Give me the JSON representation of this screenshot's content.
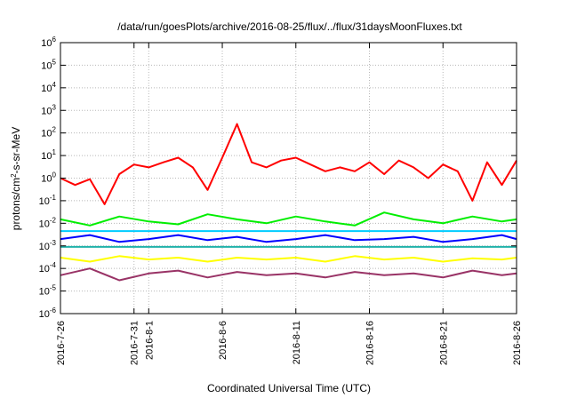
{
  "chart_data": {
    "type": "line",
    "title": "/data/run/goesPlots/archive/2016-08-25/flux/../flux/31daysMoonFluxes.txt",
    "xlabel": "Coordinated Universal Time (UTC)",
    "ylabel_parts": [
      "protons/cm",
      "2",
      "-s-sr-MeV"
    ],
    "y_scale": "log",
    "ylim": [
      1e-06,
      1000000.0
    ],
    "y_ticks": [
      {
        "base": "10",
        "exp": "-6",
        "value": 1e-06
      },
      {
        "base": "10",
        "exp": "-5",
        "value": 1e-05
      },
      {
        "base": "10",
        "exp": "-4",
        "value": 0.0001
      },
      {
        "base": "10",
        "exp": "-3",
        "value": 0.001
      },
      {
        "base": "10",
        "exp": "-2",
        "value": 0.01
      },
      {
        "base": "10",
        "exp": "-1",
        "value": 0.1
      },
      {
        "base": "10",
        "exp": "0",
        "value": 1
      },
      {
        "base": "10",
        "exp": "1",
        "value": 10
      },
      {
        "base": "10",
        "exp": "2",
        "value": 100
      },
      {
        "base": "10",
        "exp": "3",
        "value": 1000
      },
      {
        "base": "10",
        "exp": "4",
        "value": 10000
      },
      {
        "base": "10",
        "exp": "5",
        "value": 100000
      },
      {
        "base": "10",
        "exp": "6",
        "value": 1000000
      }
    ],
    "x_range": [
      "2016-07-26",
      "2016-08-26"
    ],
    "x_ticks": [
      "2016-7-26",
      "2016-7-31",
      "2016-8-1",
      "2016-8-6",
      "2016-8-11",
      "2016-8-16",
      "2016-8-21",
      "2016-8-26"
    ],
    "x_tick_dates": [
      "2016-07-26",
      "2016-07-31",
      "2016-08-01",
      "2016-08-06",
      "2016-08-11",
      "2016-08-16",
      "2016-08-21",
      "2016-08-26"
    ],
    "grid": true,
    "legend": "none",
    "series": [
      {
        "color": "#ff0000",
        "x": [
          "2016-07-26",
          "2016-07-27",
          "2016-07-28",
          "2016-07-29",
          "2016-07-30",
          "2016-07-31",
          "2016-08-01",
          "2016-08-02",
          "2016-08-03",
          "2016-08-04",
          "2016-08-05",
          "2016-08-06",
          "2016-08-07",
          "2016-08-08",
          "2016-08-09",
          "2016-08-10",
          "2016-08-11",
          "2016-08-12",
          "2016-08-13",
          "2016-08-14",
          "2016-08-15",
          "2016-08-16",
          "2016-08-17",
          "2016-08-18",
          "2016-08-19",
          "2016-08-20",
          "2016-08-21",
          "2016-08-22",
          "2016-08-23",
          "2016-08-24",
          "2016-08-25",
          "2016-08-26"
        ],
        "y": [
          1.0,
          0.5,
          0.9,
          0.07,
          1.5,
          4.0,
          3.0,
          5.0,
          8.0,
          3.0,
          0.3,
          8.0,
          250,
          5.0,
          3.0,
          6.0,
          8.0,
          4.0,
          2.0,
          3.0,
          2.0,
          5.0,
          1.5,
          6.0,
          3.0,
          1.0,
          4.0,
          2.0,
          0.1,
          5.0,
          0.5,
          6.0
        ]
      },
      {
        "color": "#00ee00",
        "x": [
          "2016-07-26",
          "2016-07-28",
          "2016-07-30",
          "2016-08-01",
          "2016-08-03",
          "2016-08-05",
          "2016-08-07",
          "2016-08-09",
          "2016-08-11",
          "2016-08-13",
          "2016-08-15",
          "2016-08-17",
          "2016-08-19",
          "2016-08-21",
          "2016-08-23",
          "2016-08-25",
          "2016-08-26"
        ],
        "y": [
          0.015,
          0.008,
          0.02,
          0.012,
          0.009,
          0.025,
          0.015,
          0.01,
          0.02,
          0.012,
          0.008,
          0.03,
          0.015,
          0.01,
          0.02,
          0.012,
          0.015
        ]
      },
      {
        "color": "#00ccff",
        "x": [
          "2016-07-26",
          "2016-08-26"
        ],
        "y": [
          0.0045,
          0.0045
        ]
      },
      {
        "color": "#0000ff",
        "x": [
          "2016-07-26",
          "2016-07-28",
          "2016-07-30",
          "2016-08-01",
          "2016-08-03",
          "2016-08-05",
          "2016-08-07",
          "2016-08-09",
          "2016-08-11",
          "2016-08-13",
          "2016-08-15",
          "2016-08-17",
          "2016-08-19",
          "2016-08-21",
          "2016-08-23",
          "2016-08-25",
          "2016-08-26"
        ],
        "y": [
          0.002,
          0.003,
          0.0015,
          0.002,
          0.003,
          0.0018,
          0.0025,
          0.0015,
          0.002,
          0.003,
          0.0018,
          0.002,
          0.0025,
          0.0015,
          0.002,
          0.003,
          0.002
        ]
      },
      {
        "color": "#20b2aa",
        "x": [
          "2016-07-26",
          "2016-08-26"
        ],
        "y": [
          0.0009,
          0.0009
        ]
      },
      {
        "color": "#ffff00",
        "x": [
          "2016-07-26",
          "2016-07-28",
          "2016-07-30",
          "2016-08-01",
          "2016-08-03",
          "2016-08-05",
          "2016-08-07",
          "2016-08-09",
          "2016-08-11",
          "2016-08-13",
          "2016-08-15",
          "2016-08-17",
          "2016-08-19",
          "2016-08-21",
          "2016-08-23",
          "2016-08-25",
          "2016-08-26"
        ],
        "y": [
          0.0003,
          0.0002,
          0.00035,
          0.00025,
          0.0003,
          0.0002,
          0.0003,
          0.00025,
          0.0003,
          0.0002,
          0.00035,
          0.00025,
          0.0003,
          0.0002,
          0.00028,
          0.00025,
          0.0003
        ]
      },
      {
        "color": "#993366",
        "x": [
          "2016-07-26",
          "2016-07-28",
          "2016-07-30",
          "2016-08-01",
          "2016-08-03",
          "2016-08-05",
          "2016-08-07",
          "2016-08-09",
          "2016-08-11",
          "2016-08-13",
          "2016-08-15",
          "2016-08-17",
          "2016-08-19",
          "2016-08-21",
          "2016-08-23",
          "2016-08-25",
          "2016-08-26"
        ],
        "y": [
          5e-05,
          0.0001,
          3e-05,
          6e-05,
          8e-05,
          4e-05,
          7e-05,
          5e-05,
          6e-05,
          4e-05,
          7e-05,
          5e-05,
          6e-05,
          4e-05,
          8e-05,
          5e-05,
          6e-05
        ]
      }
    ]
  }
}
